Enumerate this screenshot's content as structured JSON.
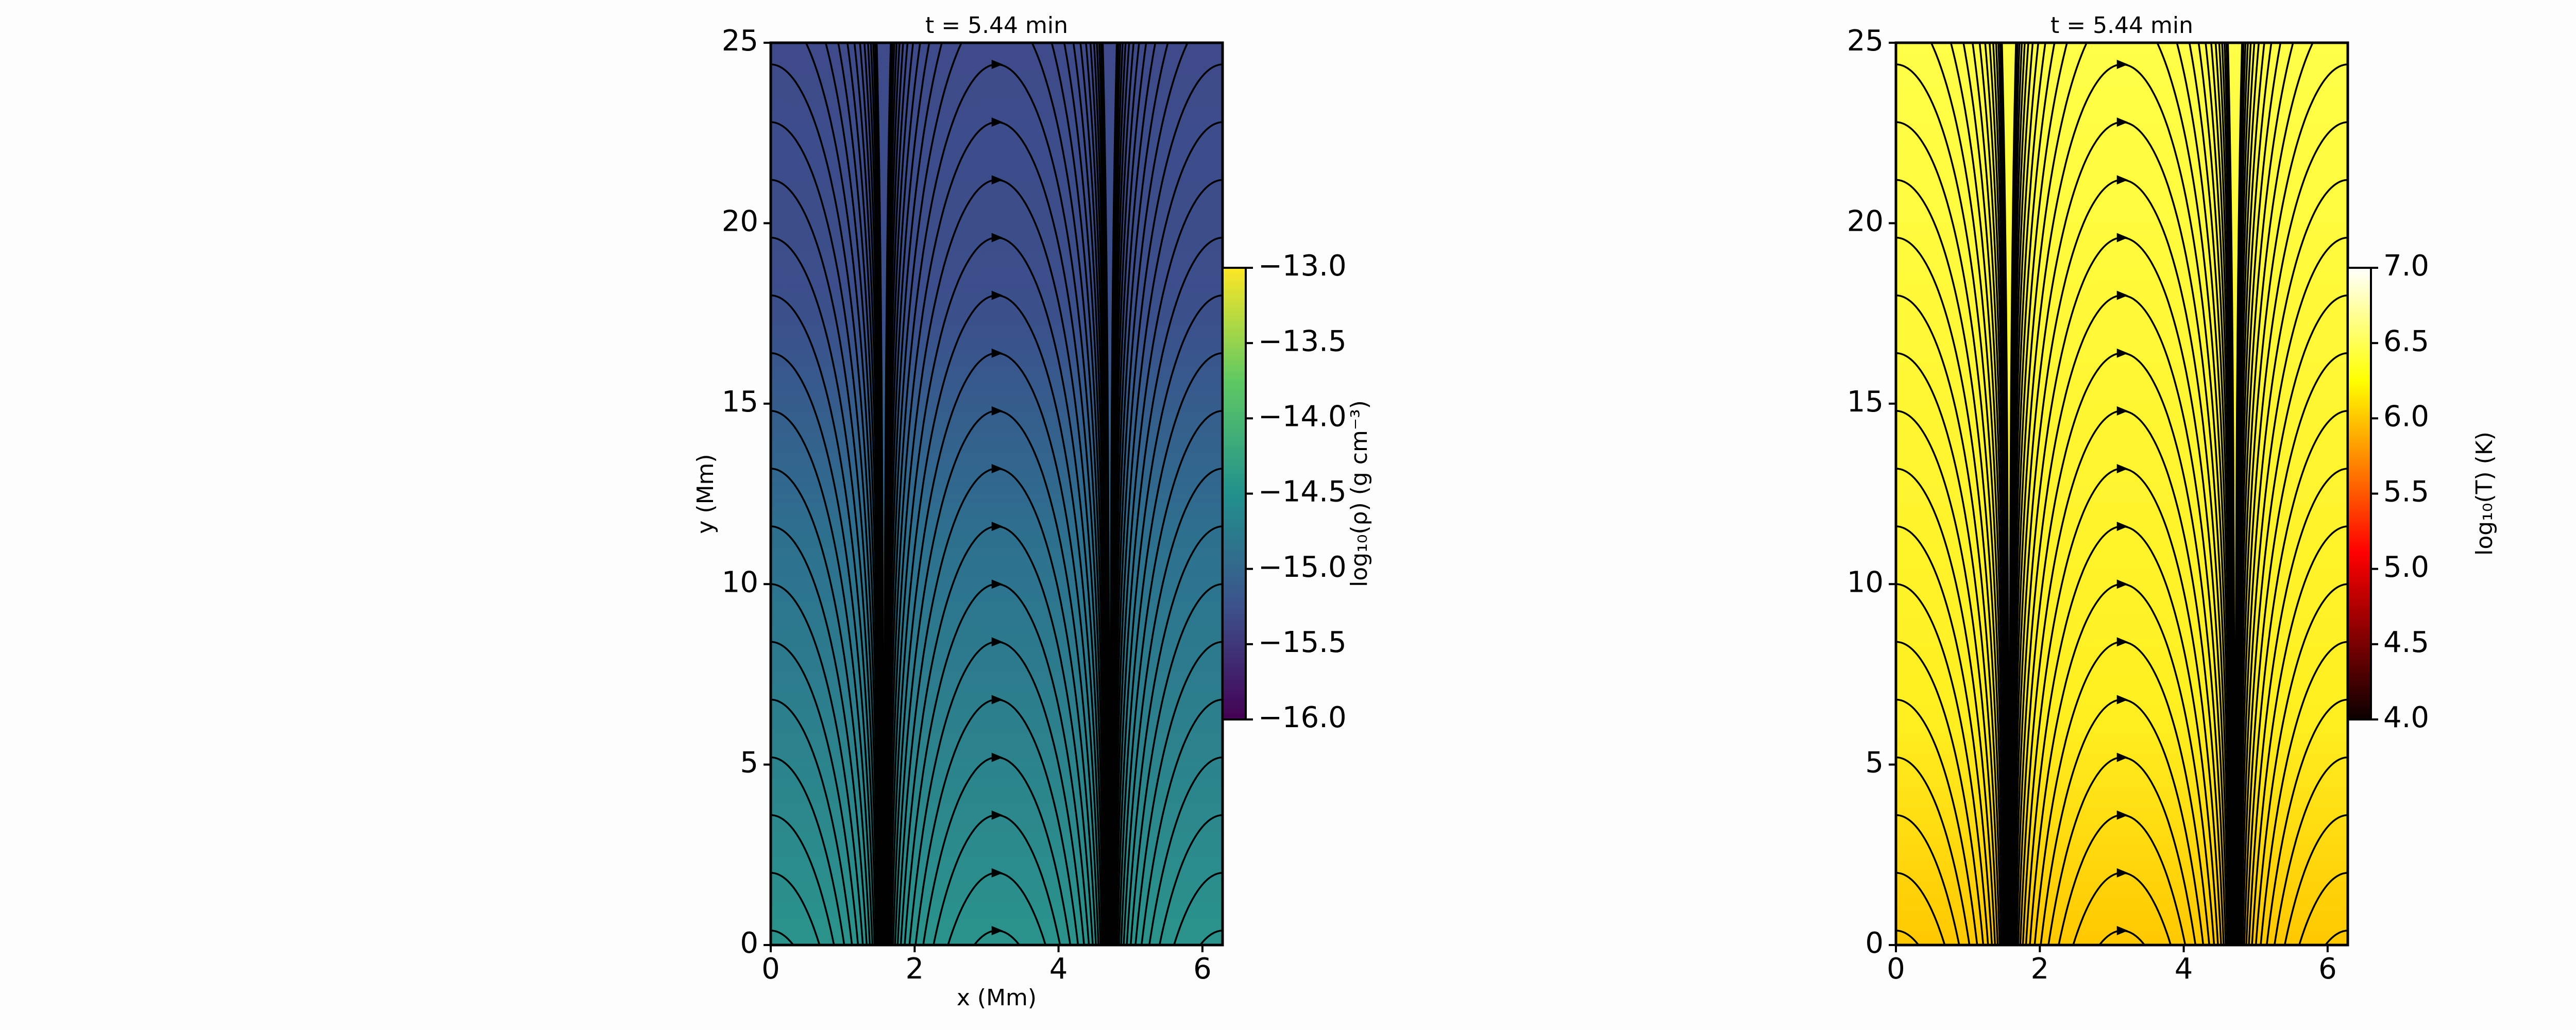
{
  "chart_data": [
    {
      "type": "heatmap",
      "title": "t = 5.44 min",
      "xlabel": "x (Mm)",
      "ylabel": "y (Mm)",
      "xlim": [
        0,
        6.28
      ],
      "ylim": [
        0,
        25
      ],
      "xticks": [
        0,
        2,
        4,
        6
      ],
      "yticks": [
        0,
        5,
        10,
        15,
        20,
        25
      ],
      "colormap": "viridis",
      "colorbar_label": "log₁₀(ρ) (g cm⁻³)",
      "clim": [
        -16,
        -13
      ],
      "colorbar_ticks": [
        {
          "value": -16,
          "label": "−16.0"
        },
        {
          "value": -15.5,
          "label": "−15.5"
        },
        {
          "value": -15,
          "label": "−15.0"
        },
        {
          "value": -14.5,
          "label": "−14.5"
        },
        {
          "value": -14,
          "label": "−14.0"
        },
        {
          "value": -13.5,
          "label": "−13.5"
        },
        {
          "value": -13,
          "label": "−13.0"
        }
      ]
    },
    {
      "type": "heatmap",
      "title": "t = 5.44 min",
      "xlim": [
        0,
        6.28
      ],
      "ylim": [
        0,
        25
      ],
      "xticks": [
        0,
        2,
        4,
        6
      ],
      "yticks": [
        0,
        5,
        10,
        15,
        20,
        25
      ],
      "colormap": "hot",
      "colorbar_label": "log₁₀(T) (K)",
      "clim": [
        4,
        7
      ],
      "colorbar_ticks": [
        {
          "value": 4,
          "label": "4.0"
        },
        {
          "value": 4.5,
          "label": "4.5"
        },
        {
          "value": 5,
          "label": "5.0"
        },
        {
          "value": 5.5,
          "label": "5.5"
        },
        {
          "value": 6,
          "label": "6.0"
        },
        {
          "value": 6.5,
          "label": "6.5"
        },
        {
          "value": 7,
          "label": "7.0"
        }
      ]
    }
  ]
}
